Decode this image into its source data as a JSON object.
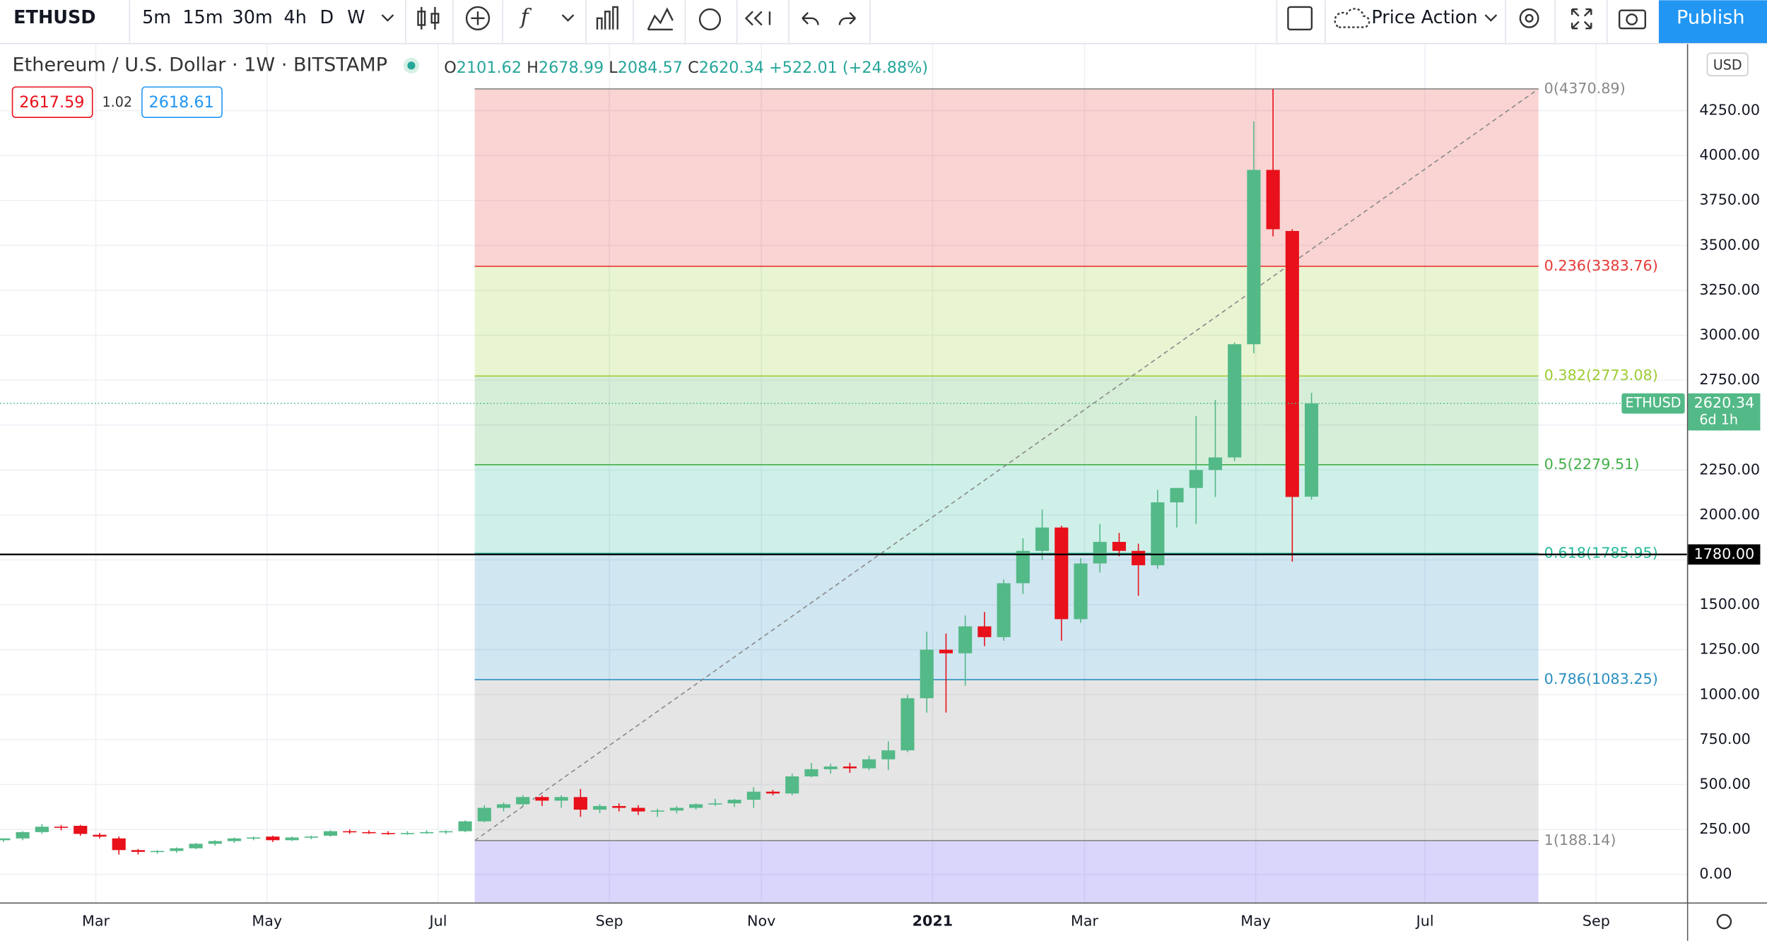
{
  "toolbar": {
    "symbol": "ETHUSD",
    "intervals": [
      "5m",
      "15m",
      "30m",
      "4h",
      "D",
      "W"
    ],
    "active_interval": 5,
    "layout": "Price Action",
    "publish": "Publish"
  },
  "chart_data": {
    "type": "candlestick",
    "title": "Ethereum / U.S. Dollar · 1W · BITSTAMP",
    "ohlc_letters": [
      "O",
      "H",
      "L",
      "C"
    ],
    "change": "+522.01 (+24.88%)",
    "bid": "2617.59",
    "spread": "1.02",
    "ask": "2618.61",
    "currency": "USD",
    "countdown": "6d 1h",
    "up_color": "#53b987",
    "down_color": "#e8101a",
    "open": [
      190,
      200,
      235,
      265,
      270,
      220,
      200,
      135,
      125,
      130,
      145,
      170,
      185,
      200,
      210,
      190,
      205,
      215,
      240,
      235,
      230,
      225,
      230,
      235,
      240,
      295,
      370,
      390,
      430,
      410,
      430,
      360,
      380,
      370,
      350,
      355,
      370,
      390,
      395,
      415,
      460,
      450,
      545,
      585,
      600,
      590,
      640,
      690,
      980,
      1250,
      1230,
      1380,
      1320,
      1620,
      1800,
      1930,
      1420,
      1730,
      1850,
      1800,
      1720,
      2070,
      2150,
      2250,
      2320,
      2950,
      3920,
      3580,
      2101.62
    ],
    "high": [
      200,
      240,
      280,
      275,
      275,
      230,
      210,
      140,
      135,
      150,
      175,
      190,
      205,
      210,
      215,
      210,
      215,
      245,
      250,
      245,
      240,
      240,
      245,
      245,
      300,
      385,
      400,
      440,
      440,
      440,
      475,
      390,
      395,
      385,
      365,
      380,
      395,
      420,
      420,
      485,
      470,
      560,
      620,
      615,
      620,
      660,
      740,
      1000,
      1350,
      1340,
      1440,
      1460,
      1640,
      1870,
      2030,
      1940,
      1760,
      1950,
      1900,
      1840,
      2140,
      2150,
      2550,
      2640,
      2960,
      4190,
      4370,
      3590,
      2678.99
    ],
    "low": [
      180,
      190,
      225,
      245,
      215,
      200,
      110,
      110,
      115,
      120,
      140,
      160,
      175,
      190,
      180,
      185,
      195,
      210,
      225,
      225,
      220,
      220,
      225,
      225,
      235,
      290,
      350,
      380,
      380,
      370,
      320,
      340,
      350,
      330,
      320,
      340,
      360,
      380,
      375,
      370,
      440,
      440,
      540,
      560,
      565,
      580,
      580,
      680,
      900,
      900,
      1050,
      1270,
      1300,
      1560,
      1750,
      1300,
      1400,
      1680,
      1770,
      1550,
      1700,
      1930,
      1950,
      2100,
      2300,
      2900,
      3550,
      1740,
      2084.57
    ],
    "close": [
      200,
      235,
      265,
      260,
      225,
      210,
      135,
      125,
      130,
      145,
      170,
      185,
      200,
      205,
      190,
      205,
      210,
      240,
      235,
      230,
      225,
      230,
      235,
      240,
      295,
      370,
      390,
      430,
      410,
      430,
      360,
      380,
      370,
      350,
      355,
      370,
      390,
      395,
      415,
      460,
      450,
      545,
      585,
      600,
      590,
      640,
      690,
      980,
      1250,
      1230,
      1380,
      1320,
      1620,
      1800,
      1930,
      1420,
      1730,
      1850,
      1800,
      1720,
      2070,
      2150,
      2250,
      2320,
      2950,
      3920,
      3590,
      2100,
      2620.34
    ],
    "xlim": [
      -0.18,
      87.52
    ],
    "xticks": [
      {
        "value": 4.8,
        "label": "Mar"
      },
      {
        "value": 13.7,
        "label": "May"
      },
      {
        "value": 22.6,
        "label": "Jul"
      },
      {
        "value": 31.5,
        "label": "Sep"
      },
      {
        "value": 39.4,
        "label": "Nov"
      },
      {
        "value": 48.3,
        "label": "2021"
      },
      {
        "value": 56.2,
        "label": "Mar"
      },
      {
        "value": 65.1,
        "label": "May"
      },
      {
        "value": 73.9,
        "label": "Jul"
      },
      {
        "value": 82.8,
        "label": "Sep"
      }
    ],
    "ylim": [
      -156.5,
      4619.7
    ],
    "yticks": [
      {
        "value": 0,
        "label": "0.00"
      },
      {
        "value": 250,
        "label": "250.00"
      },
      {
        "value": 500,
        "label": "500.00"
      },
      {
        "value": 750,
        "label": "750.00"
      },
      {
        "value": 1000,
        "label": "1000.00"
      },
      {
        "value": 1250,
        "label": "1250.00"
      },
      {
        "value": 1500,
        "label": "1500.00"
      },
      {
        "value": 1750,
        "label": "1750.00"
      },
      {
        "value": 2000,
        "label": "2000.00"
      },
      {
        "value": 2250,
        "label": "2250.00"
      },
      {
        "value": 2500,
        "label": "2500.00"
      },
      {
        "value": 2750,
        "label": "2750.00"
      },
      {
        "value": 3000,
        "label": "3000.00"
      },
      {
        "value": 3250,
        "label": "3250.00"
      },
      {
        "value": 3500,
        "label": "3500.00"
      },
      {
        "value": 3750,
        "label": "3750.00"
      },
      {
        "value": 4000,
        "label": "4000.00"
      },
      {
        "value": 4250,
        "label": "4250.00"
      }
    ],
    "grid": true,
    "fib": {
      "x": [
        24.5,
        79.8
      ],
      "below_color": "#7b68ee",
      "levels": [
        {
          "value": 4370.89,
          "label": "0(4370.89)",
          "color": "#888888"
        },
        {
          "value": 3383.76,
          "label": "0.236(3383.76)",
          "color": "#e53935"
        },
        {
          "value": 2773.08,
          "label": "0.382(2773.08)",
          "color": "#9ccc33"
        },
        {
          "value": 2279.51,
          "label": "0.5(2279.51)",
          "color": "#43b047"
        },
        {
          "value": 1785.95,
          "label": "0.618(1785.95)",
          "color": "#26b99a"
        },
        {
          "value": 1083.25,
          "label": "0.786(1083.25)",
          "color": "#2a8fc0"
        },
        {
          "value": 188.14,
          "label": "1(188.14)",
          "color": "#888888"
        }
      ]
    },
    "hline": {
      "value": 1780,
      "label": "1780.00",
      "color": "#000000"
    }
  }
}
